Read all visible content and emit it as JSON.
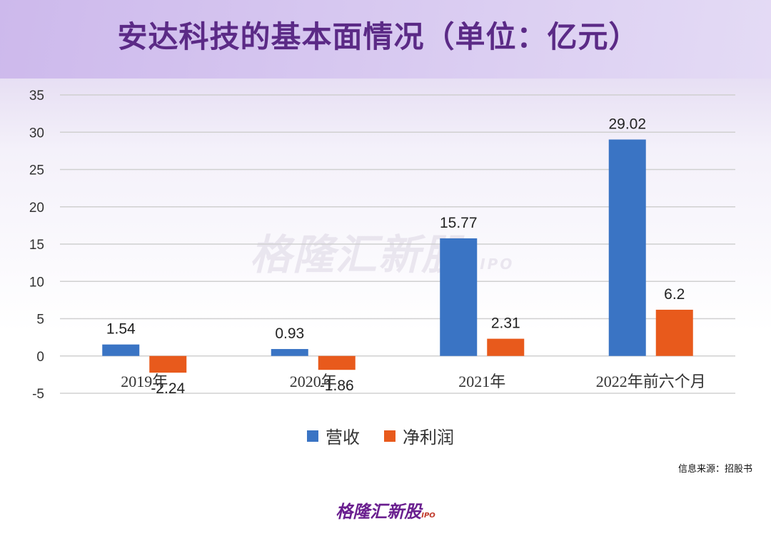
{
  "title": "安达科技的基本面情况（单位：亿元）",
  "source": "信息来源：招股书",
  "watermark": {
    "brand": "格隆汇新股",
    "suffix": "IPO"
  },
  "logo": {
    "brand": "格隆汇新股",
    "suffix": "IPO"
  },
  "colors": {
    "revenue": "#3a74c4",
    "net_profit": "#e85a1c",
    "title": "#5b2a86"
  },
  "chart_data": {
    "type": "bar",
    "title": "安达科技的基本面情况（单位：亿元）",
    "categories": [
      "2019年",
      "2020年",
      "2021年",
      "2022年前六个月"
    ],
    "series": [
      {
        "name": "营收",
        "values": [
          1.54,
          0.93,
          15.77,
          29.02
        ],
        "labels": [
          "1.54",
          "0.93",
          "15.77",
          "29.02"
        ]
      },
      {
        "name": "净利润",
        "values": [
          -2.24,
          -1.86,
          2.31,
          6.2
        ],
        "labels": [
          "-2.24",
          "-1.86",
          "2.31",
          "6.2"
        ]
      }
    ],
    "ylim": [
      -5,
      35
    ],
    "yticks": [
      "35",
      "30",
      "25",
      "20",
      "15",
      "10",
      "5",
      "0",
      "-5"
    ],
    "ytick_values": [
      35,
      30,
      25,
      20,
      15,
      10,
      5,
      0,
      -5
    ],
    "grid": true,
    "legend": "bottom-center"
  }
}
